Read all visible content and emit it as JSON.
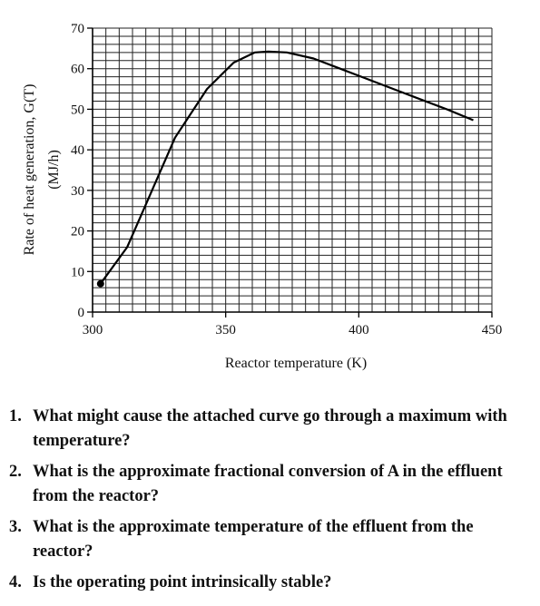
{
  "chart_data": {
    "type": "line",
    "xlabel": "Reactor temperature (K)",
    "ylabel_line1": "Rate of heat generation, G(T)",
    "ylabel_line2": "(MJ/h)",
    "xlim": [
      300,
      450
    ],
    "ylim": [
      0,
      70
    ],
    "x_ticks": [
      "300",
      "350",
      "400",
      "450"
    ],
    "y_ticks": [
      "0",
      "10",
      "20",
      "30",
      "40",
      "50",
      "60",
      "70"
    ],
    "grid": true,
    "series": [
      {
        "x": [
          303,
          313,
          321,
          331,
          343,
          353,
          361,
          366,
          373,
          383,
          393,
          403,
          413,
          423,
          433,
          443
        ],
        "y": [
          7,
          16,
          28,
          43,
          55,
          61.5,
          64,
          64.2,
          64,
          62.5,
          60,
          57.5,
          55,
          52.5,
          50,
          47.3
        ]
      }
    ],
    "marker": {
      "x": 303,
      "y": 7
    }
  },
  "questions": [
    {
      "number": "1.",
      "text": "What might cause the attached curve go through a maximum with temperature?"
    },
    {
      "number": "2.",
      "text": "What is the approximate fractional conversion of A in the effluent from the reactor?"
    },
    {
      "number": "3.",
      "text": "What is the approximate temperature of the effluent from the reactor?"
    },
    {
      "number": "4.",
      "text": "Is the operating point intrinsically stable?"
    }
  ]
}
